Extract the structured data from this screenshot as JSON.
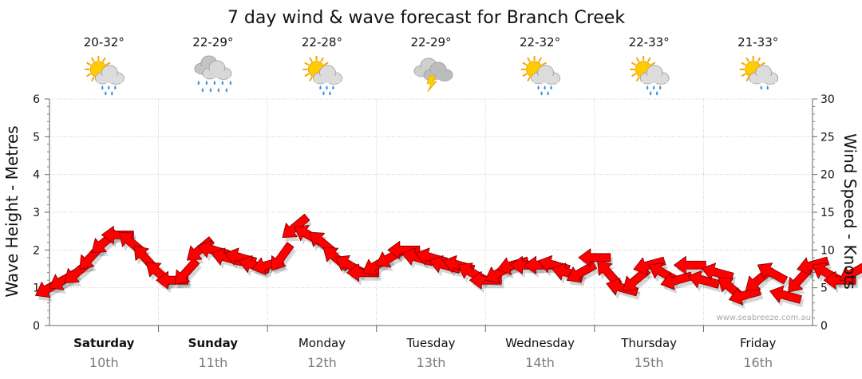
{
  "chart_data": {
    "type": "line",
    "title": "7 day wind & wave forecast for Branch Creek",
    "ylabel_left": "Wave Height - Metres",
    "ylabel_right": "Wind Speed - Knots",
    "ylim_left": [
      0,
      6
    ],
    "ylim_right": [
      0,
      30
    ],
    "yticks_left": [
      "0",
      "1",
      "2",
      "3",
      "4",
      "5",
      "6"
    ],
    "yticks_right": [
      "0",
      "5",
      "10",
      "15",
      "20",
      "25",
      "30"
    ],
    "grid": true,
    "watermark": "www.seabreeze.com.au",
    "days": [
      {
        "day": "Saturday",
        "date": "10th",
        "temp": "20-32°",
        "icon": "sun-cloud-rain-icon",
        "bold": true
      },
      {
        "day": "Sunday",
        "date": "11th",
        "temp": "22-29°",
        "icon": "rain-cloud-icon",
        "bold": true
      },
      {
        "day": "Monday",
        "date": "12th",
        "temp": "22-28°",
        "icon": "sun-cloud-rain-icon",
        "bold": false
      },
      {
        "day": "Tuesday",
        "date": "13th",
        "temp": "22-29°",
        "icon": "storm-cloud-icon",
        "bold": false
      },
      {
        "day": "Wednesday",
        "date": "14th",
        "temp": "22-32°",
        "icon": "sun-cloud-rain-icon",
        "bold": false
      },
      {
        "day": "Thursday",
        "date": "15th",
        "temp": "22-33°",
        "icon": "sun-cloud-rain-icon",
        "bold": false
      },
      {
        "day": "Friday",
        "date": "16th",
        "temp": "21-33°",
        "icon": "sun-cloud-showers-icon",
        "bold": false
      }
    ],
    "series": [
      {
        "kind": "wind-arrows",
        "axis": "right",
        "color": "#ff0000",
        "hours_per_point": 3,
        "start_day_index": 0,
        "knots": [
          5,
          6,
          7,
          9,
          11,
          12,
          11,
          9,
          7,
          6,
          7,
          10,
          10,
          9,
          9,
          8,
          8,
          9,
          13,
          12,
          11,
          9,
          8,
          7,
          8,
          9,
          10,
          9,
          9,
          8,
          8,
          7,
          6,
          7,
          8,
          8,
          8,
          8,
          7,
          7,
          9,
          7,
          5,
          6,
          8,
          7,
          6,
          8,
          6,
          7,
          5,
          4,
          6,
          7,
          4,
          6,
          8,
          7,
          6,
          7
        ]
      }
    ]
  }
}
